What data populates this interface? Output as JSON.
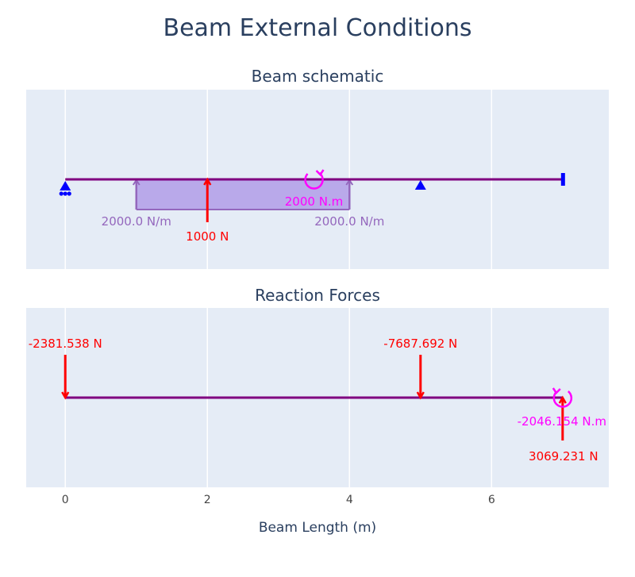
{
  "colors": {
    "background": "#ffffff",
    "plot_bg": "#e5ecf6",
    "grid": "#ffffff",
    "title_text": "#2a3f5f",
    "tick_text": "#444444",
    "beam": "#800080",
    "support": "#0000ff",
    "point_force": "#ff0000",
    "moment": "#ff00ff",
    "udl_fill": "#b9a9ea",
    "udl_line": "#9467bd"
  },
  "chart_data": {
    "title": "Beam External Conditions",
    "xlabel": "Beam Length (m)",
    "xlim": [
      -0.55,
      7.65
    ],
    "xticks": [
      0,
      2,
      4,
      6
    ],
    "xtick_labels": [
      "0",
      "2",
      "4",
      "6"
    ],
    "grid": true,
    "beam_length": 7,
    "panels": [
      {
        "title": "Beam schematic",
        "beam": {
          "start": 0,
          "end": 7
        },
        "supports": [
          {
            "type": "pin_roller",
            "x": 0,
            "label": ""
          },
          {
            "type": "pin",
            "x": 5,
            "label": ""
          },
          {
            "type": "fixed_end",
            "x": 7,
            "label": ""
          }
        ],
        "distributed_loads": [
          {
            "x_start": 1,
            "x_end": 4,
            "w_start": 2000.0,
            "w_end": 2000.0,
            "label_start": "2000.0 N/m",
            "label_end": "2000.0 N/m",
            "direction": "up"
          }
        ],
        "point_loads": [
          {
            "x": 2,
            "value": 1000,
            "label": "1000 N",
            "direction": "up"
          }
        ],
        "moments": [
          {
            "x": 3.5,
            "value": 2000,
            "label": "2000 N.m",
            "direction": "counterclockwise"
          }
        ]
      },
      {
        "title": "Reaction Forces",
        "point_loads": [
          {
            "x": 0,
            "value": -2381.538,
            "label": "-2381.538 N",
            "direction": "down"
          },
          {
            "x": 5,
            "value": -7687.692,
            "label": "-7687.692 N",
            "direction": "down"
          },
          {
            "x": 7,
            "value": 3069.231,
            "label": "3069.231 N",
            "direction": "up"
          }
        ],
        "moments": [
          {
            "x": 7,
            "value": -2046.154,
            "label": "-2046.154 N.m",
            "direction": "clockwise"
          }
        ]
      }
    ]
  }
}
